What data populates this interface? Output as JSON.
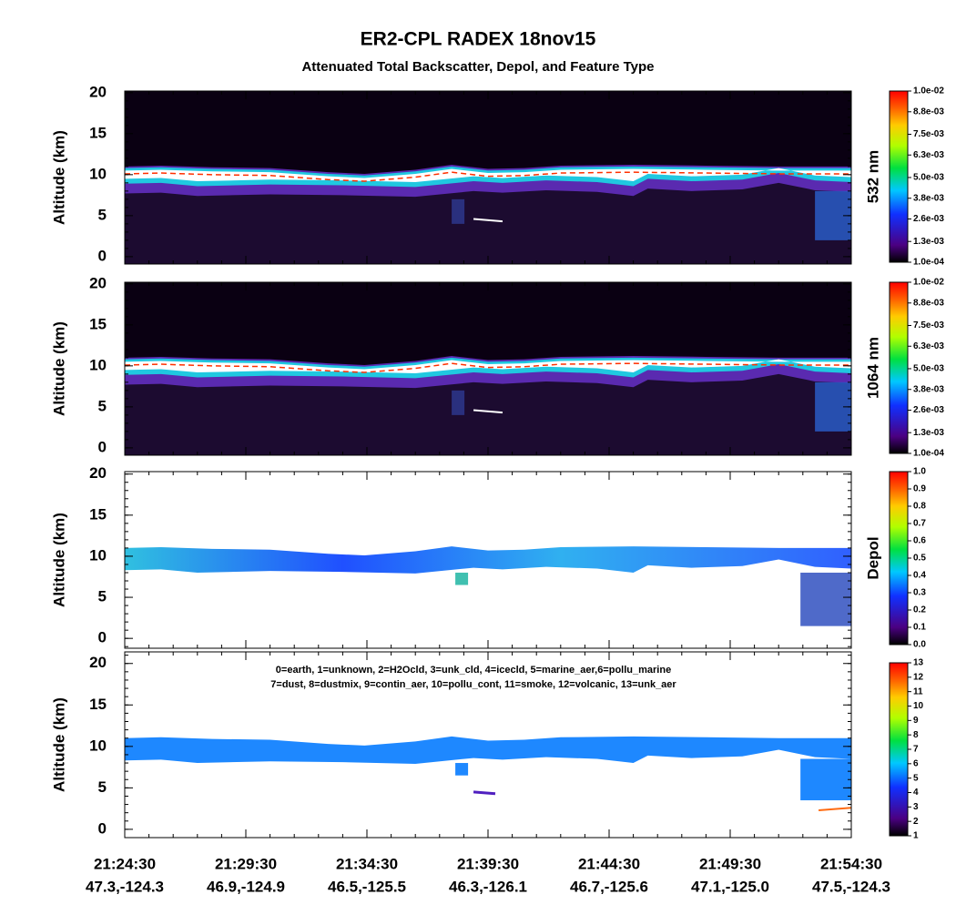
{
  "title": "ER2-CPL RADEX 18nov15",
  "subtitle": "Attenuated Total Backscatter, Depol, and Feature Type",
  "x_axis": {
    "ticks": [
      {
        "time": "21:24:30",
        "position": "47.3,-124.3"
      },
      {
        "time": "21:29:30",
        "position": "46.9,-124.9"
      },
      {
        "time": "21:34:30",
        "position": "46.5,-125.5"
      },
      {
        "time": "21:39:30",
        "position": "46.3,-126.1"
      },
      {
        "time": "21:44:30",
        "position": "46.7,-125.6"
      },
      {
        "time": "21:49:30",
        "position": "47.1,-125.0"
      },
      {
        "time": "21:54:30",
        "position": "47.5,-124.3"
      }
    ]
  },
  "chart_data": [
    {
      "type": "backscatter",
      "ylabel": "Altitude (km)",
      "ylim": [
        -0.9,
        20.2
      ],
      "yticks": [
        0,
        5,
        10,
        15,
        20
      ],
      "colorbar": {
        "label": "532 nm",
        "clim": [
          0.0001,
          0.01
        ],
        "ticks": [
          {
            "value": 0.0001,
            "label": "1.0e-04"
          },
          {
            "value": 0.0013,
            "label": "1.3e-03"
          },
          {
            "value": 0.0026,
            "label": "2.6e-03"
          },
          {
            "value": 0.0038,
            "label": "3.8e-03"
          },
          {
            "value": 0.005,
            "label": "5.0e-03"
          },
          {
            "value": 0.0063,
            "label": "6.3e-03"
          },
          {
            "value": 0.0075,
            "label": "7.5e-03"
          },
          {
            "value": 0.0088,
            "label": "8.8e-03"
          },
          {
            "value": 0.01,
            "label": "1.0e-02"
          }
        ]
      }
    },
    {
      "type": "backscatter",
      "ylabel": "Altitude (km)",
      "ylim": [
        -0.9,
        20.2
      ],
      "yticks": [
        0,
        5,
        10,
        15,
        20
      ],
      "colorbar": {
        "label": "1064 nm",
        "clim": [
          0.0001,
          0.01
        ],
        "ticks": [
          {
            "value": 0.0001,
            "label": "1.0e-04"
          },
          {
            "value": 0.0013,
            "label": "1.3e-03"
          },
          {
            "value": 0.0026,
            "label": "2.6e-03"
          },
          {
            "value": 0.0038,
            "label": "3.8e-03"
          },
          {
            "value": 0.005,
            "label": "5.0e-03"
          },
          {
            "value": 0.0063,
            "label": "6.3e-03"
          },
          {
            "value": 0.0075,
            "label": "7.5e-03"
          },
          {
            "value": 0.0088,
            "label": "8.8e-03"
          },
          {
            "value": 0.01,
            "label": "1.0e-02"
          }
        ]
      }
    },
    {
      "type": "depol",
      "ylabel": "Altitude (km)",
      "ylim": [
        -1.2,
        20.3
      ],
      "yticks": [
        0,
        5,
        10,
        15,
        20
      ],
      "colorbar": {
        "label": "Depol",
        "clim": [
          0,
          1
        ],
        "ticks": [
          {
            "value": 0,
            "label": "0.0"
          },
          0.1,
          0.2,
          0.3,
          0.4,
          0.5,
          0.6,
          0.7,
          0.8,
          0.9,
          {
            "value": 1,
            "label": "1.0"
          }
        ]
      }
    },
    {
      "type": "feature",
      "ylabel": "Altitude (km)",
      "ylim": [
        -1,
        21.4
      ],
      "yticks": [
        0,
        5,
        10,
        15,
        20
      ],
      "legend_text": [
        "0=earth, 1=unknown, 2=H2Ocld, 3=unk_cld, 4=icecld, 5=marine_aer,6=pollu_marine",
        "7=dust, 8=dustmix, 9=contin_aer, 10=pollu_cont, 11=smoke, 12=volcanic, 13=unk_aer"
      ],
      "colorbar": {
        "clim": [
          1,
          13
        ],
        "ticks": [
          1,
          2,
          3,
          4,
          5,
          6,
          7,
          8,
          9,
          10,
          11,
          12,
          13
        ]
      }
    }
  ]
}
